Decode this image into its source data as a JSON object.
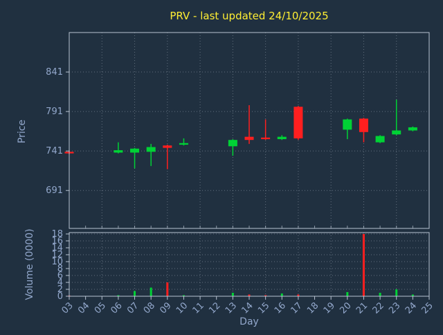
{
  "colors": {
    "background": "#203040",
    "title": "#ffee33",
    "tick_text": "#93a8cc",
    "axis": "#b9c4d2",
    "grid": "#9aa6b4",
    "up": "#00d235",
    "down": "#ff1f1f"
  },
  "chart_data": {
    "type": "candlestick",
    "title": "PRV - last updated 24/10/2025",
    "xlabel": "Day",
    "ylabel_price": "Price",
    "ylabel_volume": "Volume (0000)",
    "x_ticks": [
      "03",
      "04",
      "05",
      "06",
      "07",
      "08",
      "09",
      "10",
      "11",
      "12",
      "13",
      "14",
      "15",
      "16",
      "17",
      "18",
      "19",
      "20",
      "21",
      "22",
      "23",
      "24",
      "25"
    ],
    "price_ticks": [
      691,
      741,
      791,
      841
    ],
    "price_range": [
      643,
      891
    ],
    "volume_ticks": [
      0,
      2,
      4,
      6,
      8,
      10,
      12,
      14,
      16,
      18
    ],
    "volume_range": [
      0,
      18.4
    ],
    "legend": "none",
    "grid": "dotted",
    "candles": [
      {
        "day": 3,
        "open": 740,
        "high": 741,
        "low": 737,
        "close": 738,
        "dir": "down",
        "volume": 0.2
      },
      {
        "day": 6,
        "open": 739,
        "high": 752,
        "low": 738,
        "close": 742,
        "dir": "up",
        "volume": 0.3
      },
      {
        "day": 7,
        "open": 739,
        "high": 745,
        "low": 719,
        "close": 744,
        "dir": "up",
        "volume": 1.5
      },
      {
        "day": 8,
        "open": 740,
        "high": 750,
        "low": 722,
        "close": 746,
        "dir": "up",
        "volume": 2.5
      },
      {
        "day": 9,
        "open": 748,
        "high": 749,
        "low": 718,
        "close": 745,
        "dir": "down",
        "volume": 4
      },
      {
        "day": 10,
        "open": 749,
        "high": 757,
        "low": 748,
        "close": 751,
        "dir": "up",
        "volume": 0.3
      },
      {
        "day": 13,
        "open": 747,
        "high": 756,
        "low": 735,
        "close": 755,
        "dir": "up",
        "volume": 1
      },
      {
        "day": 14,
        "open": 759,
        "high": 799,
        "low": 750,
        "close": 755,
        "dir": "down",
        "volume": 0.5
      },
      {
        "day": 15,
        "open": 758,
        "high": 781,
        "low": 755,
        "close": 756,
        "dir": "down",
        "volume": 0.3
      },
      {
        "day": 16,
        "open": 756,
        "high": 761,
        "low": 755,
        "close": 759,
        "dir": "up",
        "volume": 0.8
      },
      {
        "day": 17,
        "open": 797,
        "high": 798,
        "low": 755,
        "close": 757,
        "dir": "down",
        "volume": 0.5
      },
      {
        "day": 20,
        "open": 768,
        "high": 782,
        "low": 756,
        "close": 781,
        "dir": "up",
        "volume": 1.2
      },
      {
        "day": 21,
        "open": 782,
        "high": 783,
        "low": 752,
        "close": 765,
        "dir": "down",
        "volume": 18
      },
      {
        "day": 22,
        "open": 752,
        "high": 761,
        "low": 751,
        "close": 760,
        "dir": "up",
        "volume": 1
      },
      {
        "day": 23,
        "open": 762,
        "high": 806,
        "low": 761,
        "close": 767,
        "dir": "up",
        "volume": 2
      },
      {
        "day": 24,
        "open": 767,
        "high": 772,
        "low": 766,
        "close": 771,
        "dir": "up",
        "volume": 0.5
      }
    ]
  }
}
